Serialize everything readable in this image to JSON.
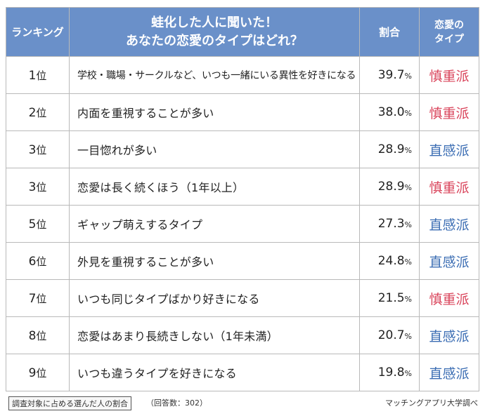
{
  "colors": {
    "header_bg": "#6a90c9",
    "careful": "#d9435a",
    "intuitive": "#3b6db3"
  },
  "header": {
    "rank": "ランキング",
    "title_line1": "蛙化した人に聞いた！",
    "title_line2": "あなたの恋愛のタイプはどれ？",
    "percent": "割合",
    "type_line1": "恋愛の",
    "type_line2": "タイプ"
  },
  "chart_data": {
    "type": "table",
    "rank_unit": "位",
    "percent_unit": "%",
    "rows": [
      {
        "rank": "1",
        "label": "学校・職場・サークルなど、いつも一緒にいる異性を好きになる",
        "value": "39.7",
        "type": "慎重派",
        "type_key": "careful"
      },
      {
        "rank": "2",
        "label": "内面を重視することが多い",
        "value": "38.0",
        "type": "慎重派",
        "type_key": "careful"
      },
      {
        "rank": "3",
        "label": "一目惚れが多い",
        "value": "28.9",
        "type": "直感派",
        "type_key": "intuitive"
      },
      {
        "rank": "3",
        "label": "恋愛は長く続くほう（1年以上）",
        "value": "28.9",
        "type": "慎重派",
        "type_key": "careful"
      },
      {
        "rank": "5",
        "label": "ギャップ萌えするタイプ",
        "value": "27.3",
        "type": "直感派",
        "type_key": "intuitive"
      },
      {
        "rank": "6",
        "label": "外見を重視することが多い",
        "value": "24.8",
        "type": "直感派",
        "type_key": "intuitive"
      },
      {
        "rank": "7",
        "label": "いつも同じタイプばかり好きになる",
        "value": "21.5",
        "type": "慎重派",
        "type_key": "careful"
      },
      {
        "rank": "8",
        "label": "恋愛はあまり長続きしない（1年未満）",
        "value": "20.7",
        "type": "直感派",
        "type_key": "intuitive"
      },
      {
        "rank": "9",
        "label": "いつも違うタイプを好きになる",
        "value": "19.8",
        "type": "直感派",
        "type_key": "intuitive"
      }
    ]
  },
  "footer": {
    "note": "調査対象に占める選んだ人の割合",
    "respondents": "（回答数：302）",
    "source": "マッチングアプリ大学調べ"
  }
}
